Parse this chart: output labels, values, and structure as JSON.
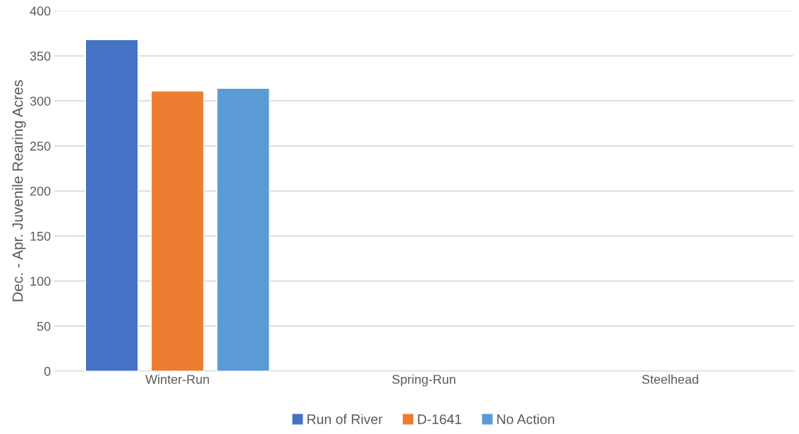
{
  "chart_data": {
    "type": "bar",
    "ylabel": "Dec. - Apr. Juvenile Rearing Acres",
    "categories": [
      "Winter-Run",
      "Spring-Run",
      "Steelhead"
    ],
    "series": [
      {
        "name": "Run of River",
        "color": "#4472c4",
        "values": [
          368,
          null,
          null
        ]
      },
      {
        "name": "D-1641",
        "color": "#ed7d31",
        "values": [
          311,
          null,
          null
        ]
      },
      {
        "name": "No Action",
        "color": "#5b9bd5",
        "values": [
          314,
          null,
          null
        ]
      }
    ],
    "ylim": [
      0,
      400
    ],
    "yticks": [
      0,
      50,
      100,
      150,
      200,
      250,
      300,
      350,
      400
    ],
    "grid": "y",
    "legend": "bottom"
  }
}
